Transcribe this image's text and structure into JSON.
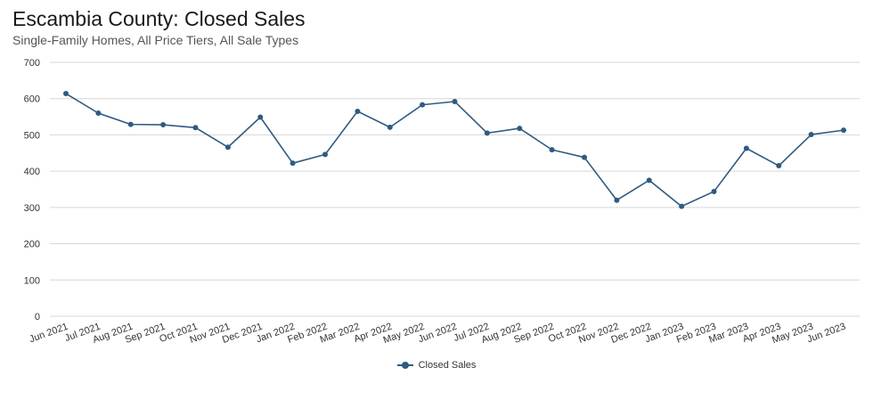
{
  "header": {
    "title": "Escambia County: Closed Sales",
    "subtitle": "Single-Family Homes, All Price Tiers, All Sale Types"
  },
  "colors": {
    "series": "#2e5b82",
    "grid": "#d6d6d6"
  },
  "chart_data": {
    "type": "line",
    "title": "Escambia County: Closed Sales",
    "subtitle": "Single-Family Homes, All Price Tiers, All Sale Types",
    "categories": [
      "Jun 2021",
      "Jul 2021",
      "Aug 2021",
      "Sep 2021",
      "Oct 2021",
      "Nov 2021",
      "Dec 2021",
      "Jan 2022",
      "Feb 2022",
      "Mar 2022",
      "Apr 2022",
      "May 2022",
      "Jun 2022",
      "Jul 2022",
      "Aug 2022",
      "Sep 2022",
      "Oct 2022",
      "Nov 2022",
      "Dec 2022",
      "Jan 2023",
      "Feb 2023",
      "Mar 2023",
      "Apr 2023",
      "May 2023",
      "Jun 2023"
    ],
    "series": [
      {
        "name": "Closed Sales",
        "values": [
          614,
          560,
          529,
          528,
          520,
          466,
          549,
          422,
          446,
          565,
          521,
          583,
          592,
          505,
          518,
          459,
          438,
          320,
          375,
          303,
          344,
          463,
          415,
          501,
          513
        ]
      }
    ],
    "ylim": [
      0,
      700
    ],
    "yticks": [
      0,
      100,
      200,
      300,
      400,
      500,
      600,
      700
    ],
    "grid": true,
    "legend": "bottom-center",
    "xlabel": "",
    "ylabel": ""
  }
}
